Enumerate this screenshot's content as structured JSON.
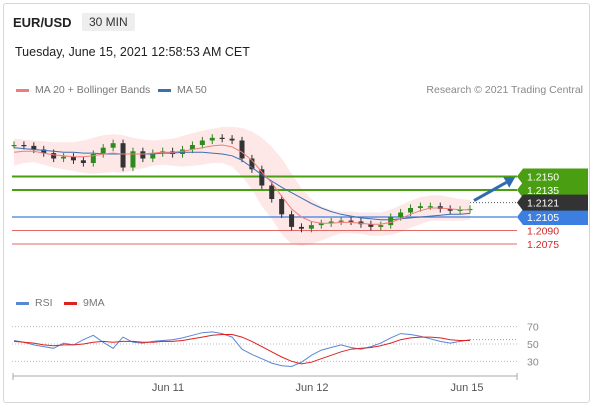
{
  "header": {
    "symbol": "EUR/USD",
    "timeframe": "30 MIN",
    "datetime": "Tuesday, June 15, 2021 12:58:53 AM CET"
  },
  "legend": {
    "ma20_label": "MA 20 + Bollinger Bands",
    "ma50_label": "MA 50",
    "credit": "Research © 2021 Trading Central",
    "rsi_label": "RSI",
    "rsi_ma_label": "9MA"
  },
  "colors": {
    "ma20": "#f07b7b",
    "bollinger_fill": "#fde3e3",
    "ma50": "#3d6fb0",
    "support_green": "#4a9e12",
    "resistance_blue": "#3d7fe0",
    "level_red": "#e06a6a",
    "current_price": "#333333",
    "rsi": "#5b86d6",
    "rsi_ma": "#e02020",
    "arrow": "#2e6bb0"
  },
  "chart_data": [
    {
      "type": "line",
      "title": "EUR/USD 30 MIN",
      "x_ticks": [
        "Jun 11",
        "Jun 12",
        "Jun 15"
      ],
      "ylim": [
        1.2055,
        1.2215
      ],
      "current_price": "1.2121",
      "levels": [
        {
          "value": 1.215,
          "label": "1.2150",
          "style": "green-band"
        },
        {
          "value": 1.2135,
          "label": "1.2135",
          "style": "green-band"
        },
        {
          "value": 1.2105,
          "label": "1.2105",
          "style": "blue-band"
        },
        {
          "value": 1.209,
          "label": "1.2090",
          "style": "red-line"
        },
        {
          "value": 1.2075,
          "label": "1.2075",
          "style": "red-line"
        }
      ],
      "series": [
        {
          "name": "price",
          "values": [
            1.2185,
            1.2184,
            1.218,
            1.2176,
            1.217,
            1.2172,
            1.2168,
            1.2165,
            1.2175,
            1.2182,
            1.2187,
            1.216,
            1.2178,
            1.217,
            1.2176,
            1.2178,
            1.2175,
            1.218,
            1.2185,
            1.219,
            1.2193,
            1.2192,
            1.219,
            1.217,
            1.2158,
            1.214,
            1.2125,
            1.2108,
            1.2094,
            1.2092,
            1.2096,
            1.2098,
            1.21,
            1.2101,
            1.21,
            1.2097,
            1.2094,
            1.2096,
            1.2105,
            1.211,
            1.2115,
            1.2117,
            1.2117,
            1.2114,
            1.2112,
            1.2113,
            1.2114
          ]
        },
        {
          "name": "MA 20",
          "values": [
            1.2177,
            1.2178,
            1.2178,
            1.2176,
            1.2174,
            1.2173,
            1.2172,
            1.2172,
            1.2173,
            1.2175,
            1.2176,
            1.2175,
            1.2175,
            1.2175,
            1.2176,
            1.2177,
            1.2177,
            1.2178,
            1.218,
            1.2182,
            1.2184,
            1.2185,
            1.2183,
            1.2177,
            1.2168,
            1.2155,
            1.2143,
            1.2128,
            1.2114,
            1.2105,
            1.21,
            1.2098,
            1.2098,
            1.2099,
            1.2099,
            1.2098,
            1.2097,
            1.2097,
            1.2099,
            1.2103,
            1.2108,
            1.2112,
            1.2115,
            1.2115,
            1.2114,
            1.2113,
            1.2113
          ]
        },
        {
          "name": "MA 50",
          "values": [
            1.2182,
            1.2181,
            1.218,
            1.2179,
            1.2178,
            1.2177,
            1.2177,
            1.2176,
            1.2176,
            1.2175,
            1.2175,
            1.2175,
            1.2175,
            1.2175,
            1.2175,
            1.2176,
            1.2176,
            1.2177,
            1.2177,
            1.2177,
            1.2176,
            1.2175,
            1.2173,
            1.2168,
            1.216,
            1.2152,
            1.2145,
            1.2138,
            1.2132,
            1.2126,
            1.212,
            1.2115,
            1.2111,
            1.2108,
            1.2106,
            1.2104,
            1.2103,
            1.2102,
            1.2102,
            1.2103,
            1.2104,
            1.2105,
            1.2106,
            1.2107,
            1.2108,
            1.2108,
            1.2109
          ]
        },
        {
          "name": "Bollinger Upper",
          "values": [
            1.2192,
            1.2191,
            1.219,
            1.2189,
            1.2188,
            1.2188,
            1.2188,
            1.219,
            1.2193,
            1.2196,
            1.2197,
            1.2196,
            1.2193,
            1.2191,
            1.219,
            1.2191,
            1.2192,
            1.2195,
            1.2198,
            1.2201,
            1.2203,
            1.2205,
            1.2205,
            1.2204,
            1.22,
            1.2193,
            1.2183,
            1.217,
            1.2153,
            1.2137,
            1.2125,
            1.2117,
            1.2113,
            1.2111,
            1.2111,
            1.211,
            1.211,
            1.211,
            1.2113,
            1.2118,
            1.2123,
            1.2127,
            1.2129,
            1.2129,
            1.2127,
            1.2125,
            1.2124
          ]
        },
        {
          "name": "Bollinger Lower",
          "values": [
            1.2162,
            1.2165,
            1.2166,
            1.2163,
            1.216,
            1.2158,
            1.2156,
            1.2154,
            1.2153,
            1.2154,
            1.2155,
            1.2154,
            1.2157,
            1.2159,
            1.2162,
            1.2163,
            1.2162,
            1.2161,
            1.2162,
            1.2163,
            1.2165,
            1.2165,
            1.2161,
            1.215,
            1.2136,
            1.2117,
            1.2103,
            1.2086,
            1.2075,
            1.2073,
            1.2075,
            1.2079,
            1.2083,
            1.2087,
            1.2087,
            1.2086,
            1.2084,
            1.2084,
            1.2085,
            1.2088,
            1.2093,
            1.2097,
            1.2101,
            1.2101,
            1.2101,
            1.2101,
            1.2102
          ]
        }
      ]
    },
    {
      "type": "line",
      "title": "RSI",
      "ylim": [
        20,
        80
      ],
      "y_ticks": [
        "70",
        "50",
        "30"
      ],
      "series": [
        {
          "name": "RSI",
          "values": [
            54,
            52,
            49,
            47,
            45,
            51,
            49,
            55,
            60,
            52,
            45,
            58,
            52,
            51,
            53,
            54,
            55,
            57,
            60,
            63,
            64,
            62,
            58,
            44,
            38,
            33,
            28,
            25,
            24,
            29,
            37,
            43,
            46,
            49,
            46,
            44,
            47,
            51,
            57,
            62,
            61,
            59,
            56,
            53,
            51,
            53,
            55
          ]
        },
        {
          "name": "9MA",
          "values": [
            53,
            52,
            51,
            49,
            48,
            49,
            49,
            50,
            52,
            53,
            52,
            53,
            53,
            52,
            52,
            53,
            53,
            54,
            56,
            58,
            60,
            61,
            61,
            58,
            53,
            47,
            41,
            35,
            30,
            27,
            29,
            33,
            37,
            41,
            44,
            45,
            46,
            48,
            51,
            55,
            57,
            58,
            58,
            57,
            55,
            54,
            54
          ]
        }
      ]
    }
  ]
}
